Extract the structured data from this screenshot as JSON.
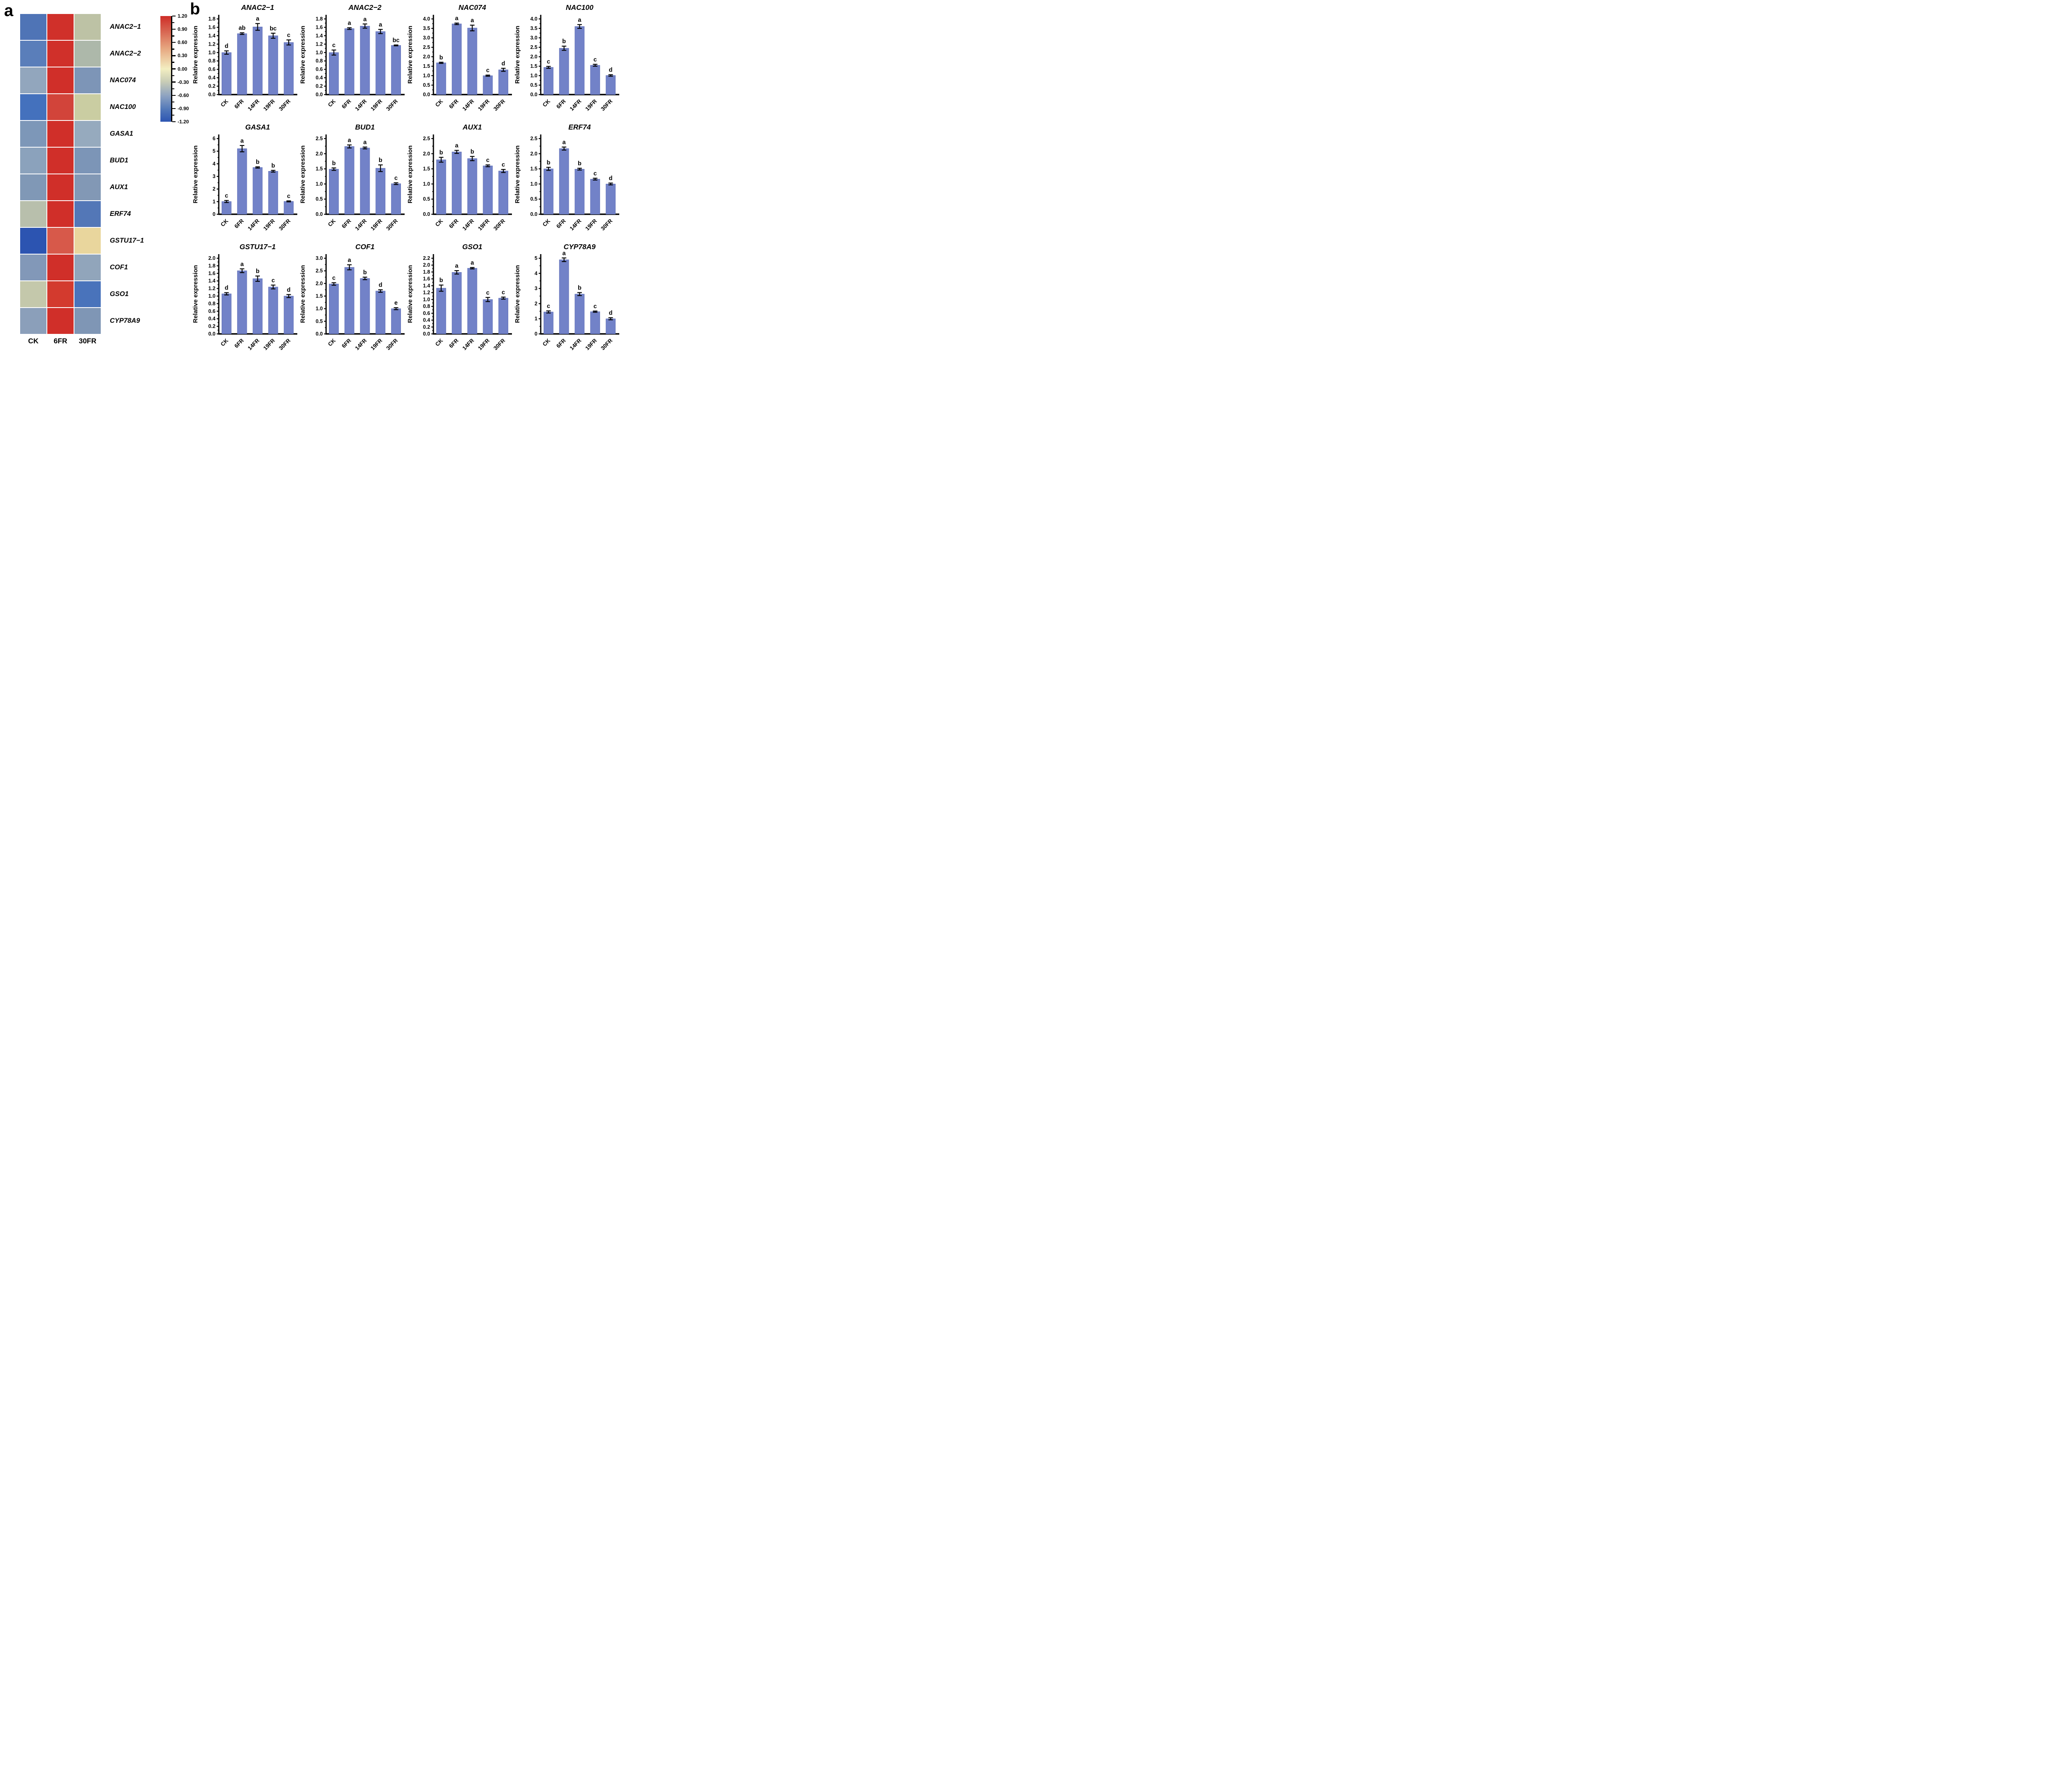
{
  "panel_a": {
    "label": "a",
    "heatmap": {
      "columns": [
        "CK",
        "6FR",
        "30FR"
      ],
      "rows": [
        {
          "gene": "ANAC2−1",
          "colors": [
            "#4f74b6",
            "#d0302a",
            "#bdc2a5"
          ]
        },
        {
          "gene": "ANAC2−2",
          "colors": [
            "#5a7eba",
            "#d0302a",
            "#adb8aa"
          ]
        },
        {
          "gene": "NAC074",
          "colors": [
            "#92a6bd",
            "#d02f29",
            "#7d95b7"
          ]
        },
        {
          "gene": "NAC100",
          "colors": [
            "#4471bd",
            "#d2443a",
            "#cacda2"
          ]
        },
        {
          "gene": "GASA1",
          "colors": [
            "#7d97b8",
            "#d02f29",
            "#96aabe"
          ]
        },
        {
          "gene": "BUD1",
          "colors": [
            "#8ba2bc",
            "#d02f29",
            "#7c95b7"
          ]
        },
        {
          "gene": "AUX1",
          "colors": [
            "#8098b6",
            "#d02f29",
            "#8298b5"
          ]
        },
        {
          "gene": "ERF74",
          "colors": [
            "#b8bfac",
            "#d02f29",
            "#5377b7"
          ]
        },
        {
          "gene": "GSTU17−1",
          "colors": [
            "#2c54b1",
            "#d7594a",
            "#e9d69d"
          ]
        },
        {
          "gene": "COF1",
          "colors": [
            "#8298b8",
            "#d02f29",
            "#91a5bb"
          ]
        },
        {
          "gene": "GSO1",
          "colors": [
            "#c4c8ab",
            "#d33a2e",
            "#4973bb"
          ]
        },
        {
          "gene": "CYP78A9",
          "colors": [
            "#8b9fba",
            "#d02f29",
            "#7f96b5"
          ]
        }
      ]
    },
    "colorbar": {
      "tick_labels": [
        "1.20",
        "0.90",
        "0.60",
        "0.30",
        "0.00",
        "-0.30",
        "-0.60",
        "-0.90",
        "-1.20"
      ],
      "gradient_top": "#ce2d27",
      "gradient_mid": "#f3eec1",
      "gradient_bottom": "#2d55b2"
    }
  },
  "panel_b": {
    "label": "b",
    "ylabel": "Relative expression",
    "categories": [
      "CK",
      "6FR",
      "14FR",
      "19FR",
      "30FR"
    ]
  },
  "style": {
    "bar_color": "#7282c8",
    "bar_edge": "#5c6cb4",
    "axis_color": "#000000"
  },
  "chart_data": [
    {
      "type": "bar",
      "title": "ANAC2−1",
      "ylabel": "Relative expression",
      "categories": [
        "CK",
        "6FR",
        "14FR",
        "19FR",
        "30FR"
      ],
      "values": [
        1.0,
        1.45,
        1.61,
        1.4,
        1.24
      ],
      "errors": [
        0.04,
        0.02,
        0.08,
        0.06,
        0.06
      ],
      "sig_letters": [
        "d",
        "ab",
        "a",
        "bc",
        "c"
      ],
      "ylim": [
        0,
        1.8
      ],
      "ystep": 0.2,
      "ydecimals": 1
    },
    {
      "type": "bar",
      "title": "ANAC2−2",
      "ylabel": "Relative expression",
      "categories": [
        "CK",
        "6FR",
        "14FR",
        "19FR",
        "30FR"
      ],
      "values": [
        1.0,
        1.57,
        1.63,
        1.5,
        1.17
      ],
      "errors": [
        0.06,
        0.02,
        0.05,
        0.05,
        0.01
      ],
      "sig_letters": [
        "c",
        "a",
        "a",
        "a",
        "bc"
      ],
      "ylim": [
        0,
        1.8
      ],
      "ystep": 0.2,
      "ydecimals": 1
    },
    {
      "type": "bar",
      "title": "NAC074",
      "ylabel": "Relative expression",
      "categories": [
        "CK",
        "6FR",
        "14FR",
        "19FR",
        "30FR"
      ],
      "values": [
        1.68,
        3.74,
        3.52,
        1.0,
        1.31
      ],
      "errors": [
        0.03,
        0.04,
        0.15,
        0.03,
        0.08
      ],
      "sig_letters": [
        "b",
        "a",
        "a",
        "c",
        "d"
      ],
      "ylim": [
        0,
        4.0
      ],
      "ystep": 0.5,
      "ydecimals": 1
    },
    {
      "type": "bar",
      "title": "NAC100",
      "ylabel": "Relative expression",
      "categories": [
        "CK",
        "6FR",
        "14FR",
        "19FR",
        "30FR"
      ],
      "values": [
        1.44,
        2.45,
        3.6,
        1.55,
        1.01
      ],
      "errors": [
        0.05,
        0.11,
        0.1,
        0.05,
        0.04
      ],
      "sig_letters": [
        "c",
        "b",
        "a",
        "c",
        "d"
      ],
      "ylim": [
        0,
        4.0
      ],
      "ystep": 0.5,
      "ydecimals": 1
    },
    {
      "type": "bar",
      "title": "GASA1",
      "ylabel": "Relative expression",
      "categories": [
        "CK",
        "6FR",
        "14FR",
        "19FR",
        "30FR"
      ],
      "values": [
        1.01,
        5.2,
        3.71,
        3.41,
        1.02
      ],
      "errors": [
        0.08,
        0.25,
        0.05,
        0.07,
        0.04
      ],
      "sig_letters": [
        "c",
        "a",
        "b",
        "b",
        "c"
      ],
      "ylim": [
        0,
        6
      ],
      "ystep": 1,
      "ydecimals": 0
    },
    {
      "type": "bar",
      "title": "BUD1",
      "ylabel": "Relative expression",
      "categories": [
        "CK",
        "6FR",
        "14FR",
        "19FR",
        "30FR"
      ],
      "values": [
        1.49,
        2.24,
        2.19,
        1.52,
        1.01
      ],
      "errors": [
        0.04,
        0.05,
        0.03,
        0.11,
        0.03
      ],
      "sig_letters": [
        "b",
        "a",
        "a",
        "b",
        "c"
      ],
      "ylim": [
        0,
        2.5
      ],
      "ystep": 0.5,
      "ydecimals": 1
    },
    {
      "type": "bar",
      "title": "AUX1",
      "ylabel": "Relative expression",
      "categories": [
        "CK",
        "6FR",
        "14FR",
        "19FR",
        "30FR"
      ],
      "values": [
        1.8,
        2.06,
        1.84,
        1.6,
        1.43
      ],
      "errors": [
        0.08,
        0.05,
        0.07,
        0.03,
        0.05
      ],
      "sig_letters": [
        "b",
        "a",
        "b",
        "c",
        "c"
      ],
      "ylim": [
        0,
        2.5
      ],
      "ystep": 0.5,
      "ydecimals": 1
    },
    {
      "type": "bar",
      "title": "ERF74",
      "ylabel": "Relative expression",
      "categories": [
        "CK",
        "6FR",
        "14FR",
        "19FR",
        "30FR"
      ],
      "values": [
        1.5,
        2.17,
        1.49,
        1.16,
        1.0
      ],
      "errors": [
        0.05,
        0.05,
        0.03,
        0.03,
        0.03
      ],
      "sig_letters": [
        "b",
        "a",
        "b",
        "c",
        "d"
      ],
      "ylim": [
        0,
        2.5
      ],
      "ystep": 0.5,
      "ydecimals": 1
    },
    {
      "type": "bar",
      "title": "GSTU17−1",
      "ylabel": "Relative expression",
      "categories": [
        "CK",
        "6FR",
        "14FR",
        "19FR",
        "30FR"
      ],
      "values": [
        1.06,
        1.67,
        1.46,
        1.24,
        1.0
      ],
      "errors": [
        0.03,
        0.05,
        0.07,
        0.05,
        0.04
      ],
      "sig_letters": [
        "d",
        "a",
        "b",
        "c",
        "d"
      ],
      "ylim": [
        0,
        2.0
      ],
      "ystep": 0.2,
      "ydecimals": 1
    },
    {
      "type": "bar",
      "title": "COF1",
      "ylabel": "Relative expression",
      "categories": [
        "CK",
        "6FR",
        "14FR",
        "19FR",
        "30FR"
      ],
      "values": [
        1.98,
        2.64,
        2.2,
        1.7,
        1.0
      ],
      "errors": [
        0.05,
        0.1,
        0.05,
        0.05,
        0.04
      ],
      "sig_letters": [
        "c",
        "a",
        "b",
        "d",
        "e"
      ],
      "ylim": [
        0,
        3.0
      ],
      "ystep": 0.5,
      "ydecimals": 1
    },
    {
      "type": "bar",
      "title": "GSO1",
      "ylabel": "Relative expression",
      "categories": [
        "CK",
        "6FR",
        "14FR",
        "19FR",
        "30FR"
      ],
      "values": [
        1.33,
        1.79,
        1.91,
        1.0,
        1.04
      ],
      "errors": [
        0.09,
        0.05,
        0.02,
        0.06,
        0.03
      ],
      "sig_letters": [
        "b",
        "a",
        "a",
        "c",
        "c"
      ],
      "ylim": [
        0,
        2.2
      ],
      "ystep": 0.2,
      "ydecimals": 1
    },
    {
      "type": "bar",
      "title": "CYP78A9",
      "ylabel": "Relative expression",
      "categories": [
        "CK",
        "6FR",
        "14FR",
        "19FR",
        "30FR"
      ],
      "values": [
        1.45,
        4.9,
        2.63,
        1.47,
        1.0
      ],
      "errors": [
        0.07,
        0.12,
        0.1,
        0.04,
        0.07
      ],
      "sig_letters": [
        "c",
        "a",
        "b",
        "c",
        "d"
      ],
      "ylim": [
        0,
        5
      ],
      "ystep": 1,
      "ydecimals": 0
    }
  ]
}
